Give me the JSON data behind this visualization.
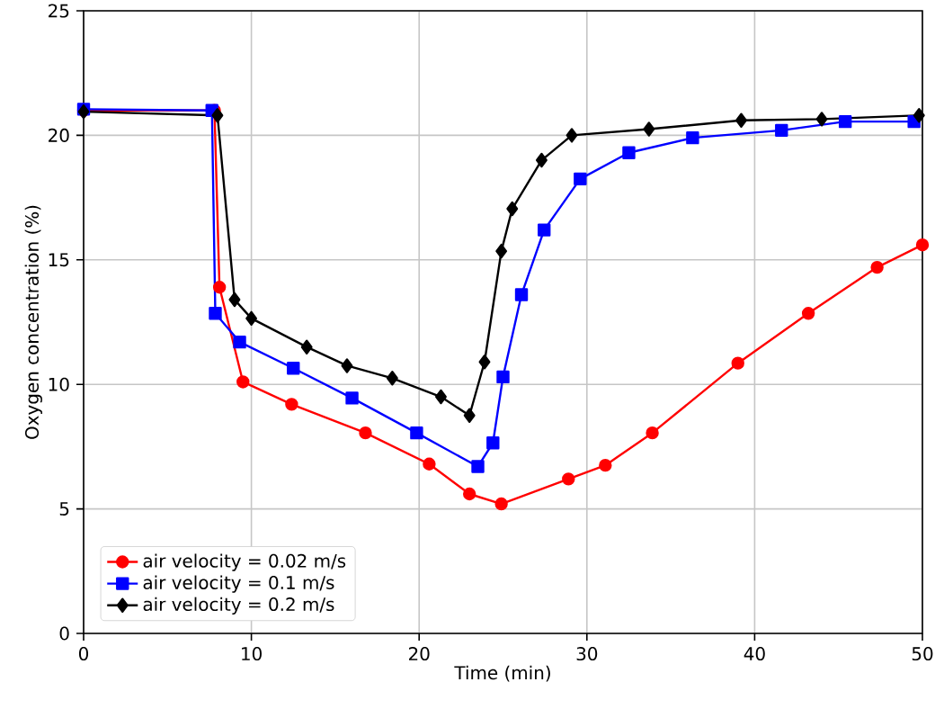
{
  "chart_data": {
    "type": "line",
    "xlabel": "Time (min)",
    "ylabel": "Oxygen concentration (%)",
    "xlim": [
      0,
      50
    ],
    "ylim": [
      0,
      25
    ],
    "xticks": [
      0,
      10,
      20,
      30,
      40,
      50
    ],
    "yticks": [
      0,
      5,
      10,
      15,
      20,
      25
    ],
    "grid": true,
    "legend": "bottom left",
    "line_style": "solid",
    "series": [
      {
        "name": "air velocity = 0.02 m/s",
        "color": "#ff0000",
        "marker": "circle",
        "x": [
          0,
          7.8,
          8.1,
          9.5,
          12.4,
          16.8,
          20.6,
          23.0,
          24.9,
          28.9,
          31.1,
          33.9,
          39.0,
          43.2,
          47.3,
          50
        ],
        "values": [
          21.0,
          21.0,
          13.9,
          10.1,
          9.2,
          8.05,
          6.8,
          5.6,
          5.2,
          6.2,
          6.75,
          8.05,
          10.85,
          12.85,
          14.7,
          15.6
        ]
      },
      {
        "name": "air velocity  = 0.1 m/s",
        "color": "#0000ff",
        "marker": "square",
        "x": [
          0,
          7.65,
          7.85,
          9.3,
          12.5,
          16.0,
          19.85,
          23.5,
          24.4,
          25.0,
          26.1,
          27.45,
          29.6,
          32.5,
          36.3,
          41.6,
          45.4,
          49.5
        ],
        "values": [
          21.05,
          21.0,
          12.85,
          11.7,
          10.65,
          9.45,
          8.05,
          6.7,
          7.65,
          10.3,
          13.6,
          16.2,
          18.25,
          19.3,
          19.9,
          20.2,
          20.55,
          20.55
        ]
      },
      {
        "name": "air velocity  = 0.2 m/s",
        "color": "#000000",
        "marker": "diamond",
        "x": [
          0,
          7.98,
          9.0,
          10.0,
          13.3,
          15.7,
          18.4,
          21.3,
          23.0,
          23.9,
          24.9,
          25.55,
          27.3,
          29.1,
          33.7,
          39.2,
          44.0,
          49.8
        ],
        "values": [
          20.95,
          20.8,
          13.4,
          12.65,
          11.5,
          10.75,
          10.25,
          9.5,
          8.75,
          10.9,
          15.35,
          17.05,
          19.0,
          20.0,
          20.25,
          20.6,
          20.65,
          20.8
        ]
      }
    ]
  }
}
